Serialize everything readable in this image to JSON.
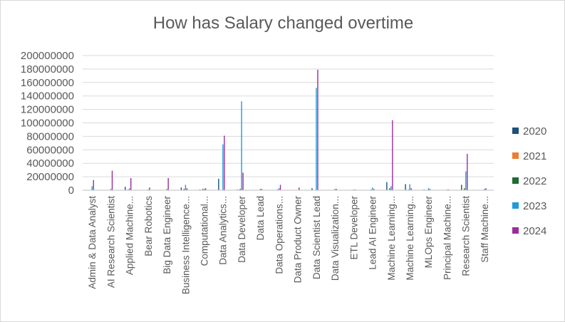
{
  "chart_data": {
    "type": "bar",
    "title": "How has Salary changed overtime",
    "xlabel": "",
    "ylabel": "",
    "ylim": [
      0,
      200000000
    ],
    "yticks": [
      0,
      20000000,
      40000000,
      60000000,
      80000000,
      100000000,
      120000000,
      140000000,
      160000000,
      180000000,
      200000000
    ],
    "legend_position": "right",
    "categories": [
      "Admin & Data Analyst",
      "AI Research Scientist",
      "Applied Machine...",
      "Bear Robotics",
      "Big Data Engineer",
      "Business Intelligence...",
      "Computational...",
      "Data Analytics...",
      "Data Developer",
      "Data Lead",
      "Data Operations...",
      "Data Product Owner",
      "Data Scientist Lead",
      "Data Visualization...",
      "ETL Developer",
      "Lead AI Engineer",
      "Machine Learning...",
      "Machine Learning...",
      "MLOps Engineer",
      "Principal Machine...",
      "Research Scientist",
      "Staff Machine..."
    ],
    "series": [
      {
        "name": "2020",
        "color": "#1f4e79",
        "values": [
          0,
          500000,
          5000000,
          0,
          500000,
          4000000,
          1000000,
          17000000,
          1000000,
          0,
          500000,
          0,
          3000000,
          0,
          0,
          500000,
          12000000,
          9000000,
          1000000,
          500000,
          8000000,
          0
        ]
      },
      {
        "name": "2021",
        "color": "#ed7d31",
        "values": [
          0,
          0,
          500000,
          0,
          0,
          0,
          0,
          500000,
          0,
          0,
          0,
          0,
          500000,
          0,
          0,
          0,
          500000,
          0,
          0,
          0,
          500000,
          0
        ]
      },
      {
        "name": "2022",
        "color": "#1e6b33",
        "values": [
          500000,
          500000,
          1000000,
          0,
          500000,
          2000000,
          2000000,
          500000,
          2000000,
          500000,
          1000000,
          0,
          500000,
          500000,
          0,
          1000000,
          3000000,
          1000000,
          500000,
          0,
          3000000,
          500000
        ]
      },
      {
        "name": "2023",
        "color": "#1f9bd7",
        "values": [
          6000000,
          2000000,
          3000000,
          1000000,
          2000000,
          8000000,
          2000000,
          68000000,
          132000000,
          2000000,
          3000000,
          0,
          152000000,
          2000000,
          1000000,
          4000000,
          6000000,
          9000000,
          3000000,
          1000000,
          28000000,
          2000000
        ]
      },
      {
        "name": "2024",
        "color": "#9b2d9b",
        "values": [
          15000000,
          29000000,
          18000000,
          4000000,
          18000000,
          3000000,
          3000000,
          81000000,
          26000000,
          2000000,
          8000000,
          4000000,
          179000000,
          2000000,
          1000000,
          2000000,
          104000000,
          3000000,
          2000000,
          1000000,
          54000000,
          3000000
        ]
      }
    ]
  }
}
